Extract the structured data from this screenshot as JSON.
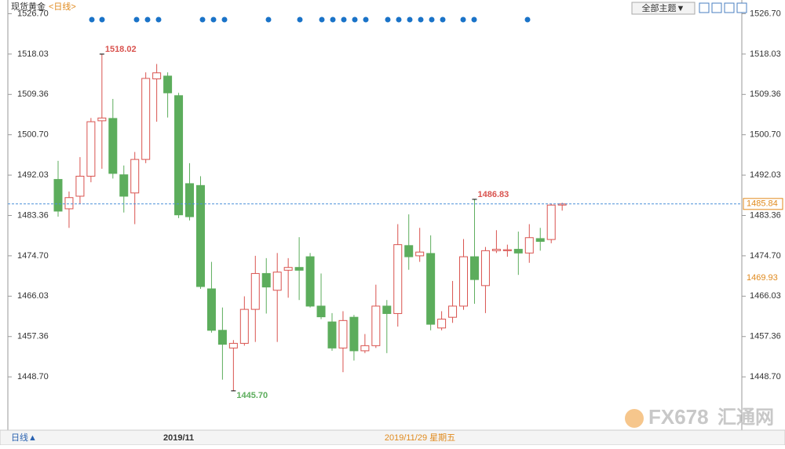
{
  "chart_data": {
    "type": "candlestick",
    "title": "现货黄金",
    "subtitle": "<日线>",
    "theme_button": "全部主题▼",
    "period_button": "日线▲",
    "cursor_date": "2019/11/29 星期五",
    "logo": "FX678",
    "logo_cn": "汇通网",
    "categories": [
      null,
      null,
      null,
      null,
      null,
      null,
      null,
      null,
      null,
      null,
      null,
      "2019/11",
      null,
      null,
      null,
      null,
      null,
      null,
      null,
      null,
      null,
      null,
      null,
      null,
      null,
      null,
      null,
      null,
      null,
      null,
      null,
      null,
      null,
      null,
      null,
      null,
      null,
      null,
      null,
      null,
      null,
      null,
      null,
      null,
      null,
      null,
      null
    ],
    "open": [
      1491.1,
      1484.8,
      1487.5,
      1491.8,
      1503.7,
      1504.2,
      1492.1,
      1488.2,
      1495.4,
      1512.7,
      1513.3,
      1509.1,
      1490.2,
      1489.8,
      1467.6,
      1458.7,
      1454.9,
      1455.9,
      1463.2,
      1470.9,
      1467.3,
      1471.6,
      1472.2,
      1474.5,
      1463.9,
      1460.5,
      1454.9,
      1461.5,
      1454.3,
      1455.4,
      1463.9,
      1462.3,
      1476.9,
      1474.7,
      1475.2,
      1459.2,
      1461.5,
      1463.9,
      1474.5,
      1468.3,
      1475.8,
      1475.8,
      1476.1,
      1475.3,
      1478.4,
      1478.2,
      1485.6
    ],
    "high": [
      1495.1,
      1488.5,
      1495.9,
      1504.3,
      1518.02,
      1508.4,
      1494.1,
      1497.0,
      1514.1,
      1515.9,
      1514.1,
      1509.7,
      1494.6,
      1491.8,
      1473.4,
      1463.6,
      1456.6,
      1466.0,
      1474.7,
      1474.2,
      1475.3,
      1474.2,
      1478.7,
      1475.3,
      1470.9,
      1462.4,
      1462.8,
      1462.0,
      1457.9,
      1468.5,
      1465.2,
      1481.5,
      1483.6,
      1480.7,
      1479.1,
      1462.8,
      1469.3,
      1478.3,
      1486.83,
      1476.6,
      1480.2,
      1477.1,
      1479.9,
      1481.5,
      1480.7,
      1485.9,
      1486.1
    ],
    "low": [
      1483.1,
      1480.7,
      1485.9,
      1490.5,
      1493.4,
      1491.3,
      1484.0,
      1481.5,
      1494.6,
      1503.5,
      1504.4,
      1482.8,
      1482.3,
      1467.6,
      1458.2,
      1448.1,
      1445.7,
      1455.4,
      1456.2,
      1462.3,
      1456.2,
      1465.7,
      1465.2,
      1463.6,
      1461.1,
      1454.3,
      1449.7,
      1452.2,
      1453.8,
      1454.9,
      1453.8,
      1459.5,
      1471.7,
      1473.4,
      1458.7,
      1458.7,
      1460.3,
      1463.1,
      1464.4,
      1462.4,
      1475.3,
      1474.5,
      1470.6,
      1473.2,
      1475.8,
      1477.4,
      1484.4
    ],
    "close": [
      1484.3,
      1487.2,
      1491.8,
      1503.5,
      1504.3,
      1492.4,
      1487.5,
      1495.4,
      1512.8,
      1514.0,
      1509.7,
      1483.5,
      1483.1,
      1468.1,
      1458.7,
      1455.7,
      1455.9,
      1463.2,
      1470.9,
      1468.0,
      1471.2,
      1472.2,
      1471.6,
      1463.9,
      1461.6,
      1454.9,
      1460.8,
      1454.3,
      1455.4,
      1463.9,
      1462.3,
      1477.1,
      1474.5,
      1475.5,
      1460.0,
      1461.1,
      1463.9,
      1474.5,
      1469.6,
      1475.8,
      1476.1,
      1476.0,
      1475.3,
      1478.6,
      1477.8,
      1485.6,
      1485.84
    ],
    "high_labels": [
      null,
      null,
      null,
      null,
      "1518.02",
      null,
      null,
      null,
      null,
      null,
      null,
      null,
      null,
      null,
      null,
      null,
      null,
      null,
      null,
      null,
      null,
      null,
      null,
      null,
      null,
      null,
      null,
      null,
      null,
      null,
      null,
      null,
      null,
      null,
      null,
      null,
      null,
      null,
      "1486.83",
      null,
      null,
      null,
      null,
      null,
      null,
      null,
      null
    ],
    "low_labels": [
      null,
      null,
      null,
      null,
      null,
      null,
      null,
      null,
      null,
      null,
      null,
      null,
      null,
      null,
      null,
      null,
      "1445.70",
      null,
      null,
      null,
      null,
      null,
      null,
      null,
      null,
      null,
      null,
      null,
      null,
      null,
      null,
      null,
      null,
      null,
      null,
      null,
      null,
      null,
      null,
      null,
      null,
      null,
      null,
      null,
      null,
      null,
      null
    ],
    "last_label": "1485.84",
    "marker_price": 1469.93,
    "up_color": "#d9534f",
    "down_color": "#5cad5c",
    "ylim": [
      1437.76,
      1529.64
    ],
    "yticks": [
      {
        "value": 1526.7,
        "label": "1526.70"
      },
      {
        "value": 1518.03,
        "label": "1518.03"
      },
      {
        "value": 1509.36,
        "label": "1509.36"
      },
      {
        "value": 1500.7,
        "label": "1500.70"
      },
      {
        "value": 1492.03,
        "label": "1492.03"
      },
      {
        "value": 1483.36,
        "label": "1483.36"
      },
      {
        "value": 1474.7,
        "label": "1474.70"
      },
      {
        "value": 1466.03,
        "label": "1466.03"
      },
      {
        "value": 1457.36,
        "label": "1457.36"
      },
      {
        "value": 1448.7,
        "label": "1448.70"
      }
    ]
  }
}
